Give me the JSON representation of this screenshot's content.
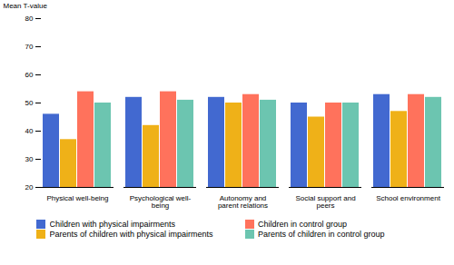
{
  "chart_data": {
    "type": "bar",
    "categories": [
      "Physical well-being",
      "Psychological well-\nbeing",
      "Autonomy and\nparent relations",
      "Social support and\npeers",
      "School environment"
    ],
    "series": [
      {
        "name": "Children with physical impairments",
        "values": [
          46,
          52,
          52,
          50,
          53
        ]
      },
      {
        "name": "Parents of children with physical impairments",
        "values": [
          37,
          42,
          50,
          45,
          47
        ]
      },
      {
        "name": "Children in control group",
        "values": [
          54,
          54,
          53,
          50,
          53
        ]
      },
      {
        "name": "Parents of children in control group",
        "values": [
          50,
          51,
          51,
          50,
          52
        ]
      }
    ],
    "ylabel": "Mean T-value",
    "ylim": [
      20,
      80
    ],
    "yticks": [
      20,
      30,
      40,
      50,
      60,
      70,
      80
    ],
    "grid": false,
    "legend": "bottom"
  }
}
